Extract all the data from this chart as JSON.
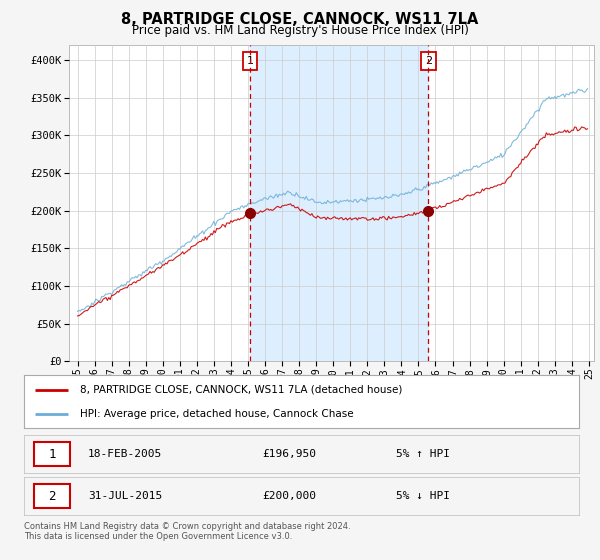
{
  "title": "8, PARTRIDGE CLOSE, CANNOCK, WS11 7LA",
  "subtitle": "Price paid vs. HM Land Registry's House Price Index (HPI)",
  "ylabel_ticks": [
    "£0",
    "£50K",
    "£100K",
    "£150K",
    "£200K",
    "£250K",
    "£300K",
    "£350K",
    "£400K"
  ],
  "ytick_values": [
    0,
    50000,
    100000,
    150000,
    200000,
    250000,
    300000,
    350000,
    400000
  ],
  "ylim": [
    0,
    420000
  ],
  "xlim_start": 1994.5,
  "xlim_end": 2025.3,
  "hpi_color": "#6baed6",
  "price_color": "#cc0000",
  "shade_color": "#ddeeff",
  "sale1_x": 2005.12,
  "sale1_y": 196950,
  "sale2_x": 2015.58,
  "sale2_y": 200000,
  "vline_color": "#cc0000",
  "bg_color": "#f5f5f5",
  "plot_bg_color": "#ffffff",
  "legend_label_red": "8, PARTRIDGE CLOSE, CANNOCK, WS11 7LA (detached house)",
  "legend_label_blue": "HPI: Average price, detached house, Cannock Chase",
  "table_row1": [
    "1",
    "18-FEB-2005",
    "£196,950",
    "5% ↑ HPI"
  ],
  "table_row2": [
    "2",
    "31-JUL-2015",
    "£200,000",
    "5% ↓ HPI"
  ],
  "footer": "Contains HM Land Registry data © Crown copyright and database right 2024.\nThis data is licensed under the Open Government Licence v3.0.",
  "grid_color": "#cccccc",
  "x_ticks": [
    1995,
    1996,
    1997,
    1998,
    1999,
    2000,
    2001,
    2002,
    2003,
    2004,
    2005,
    2006,
    2007,
    2008,
    2009,
    2010,
    2011,
    2012,
    2013,
    2014,
    2015,
    2016,
    2017,
    2018,
    2019,
    2020,
    2021,
    2022,
    2023,
    2024,
    2025
  ],
  "x_tick_labels": [
    "95",
    "96",
    "97",
    "98",
    "99",
    "00",
    "01",
    "02",
    "03",
    "04",
    "05",
    "06",
    "07",
    "08",
    "09",
    "10",
    "11",
    "12",
    "13",
    "14",
    "15",
    "16",
    "17",
    "18",
    "19",
    "20",
    "21",
    "22",
    "23",
    "24",
    "25"
  ]
}
